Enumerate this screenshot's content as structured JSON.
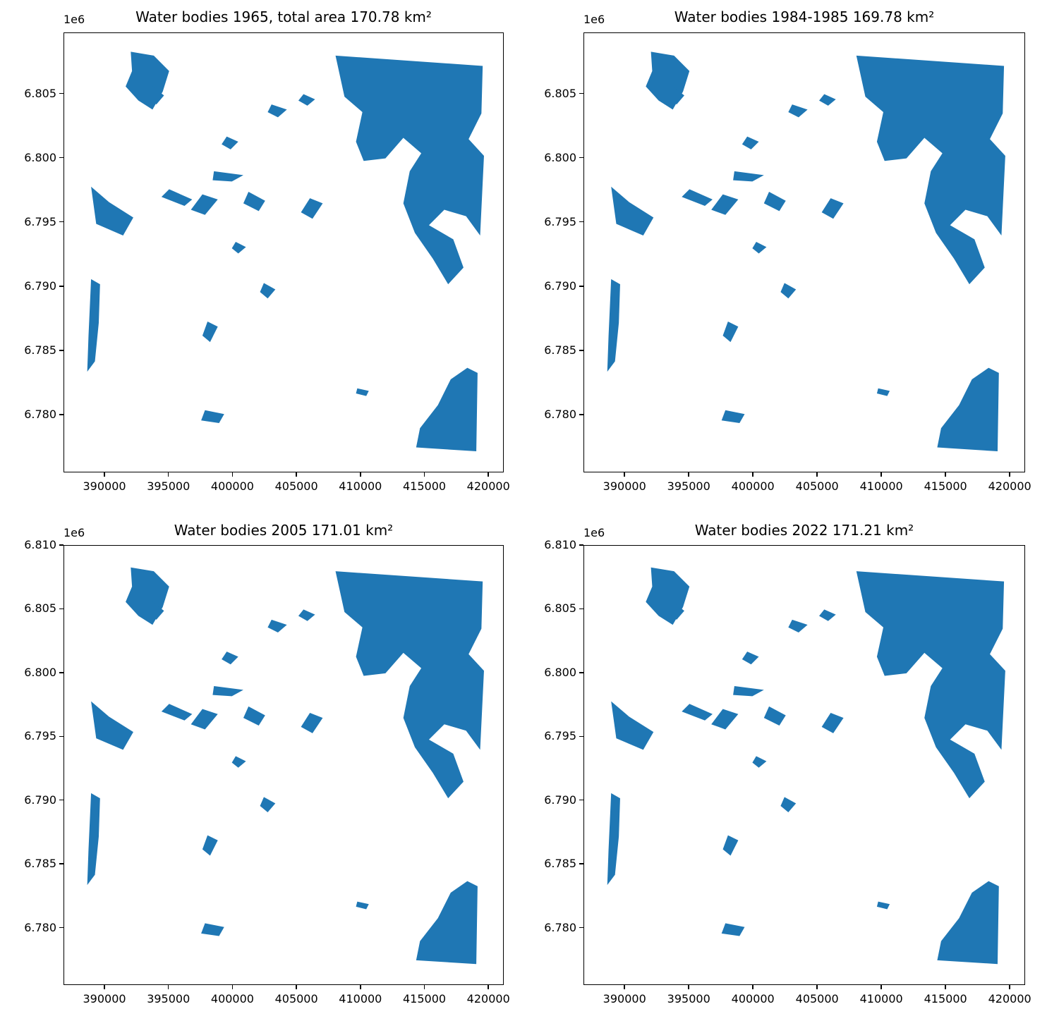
{
  "chart_data": [
    {
      "type": "map",
      "title": "Water bodies 1965, total area 170.78 km²",
      "xlim": [
        386800,
        421200
      ],
      "ylim": [
        6775500,
        6809750
      ],
      "x_ticks": [
        390000,
        395000,
        400000,
        405000,
        410000,
        415000,
        420000
      ],
      "x_tick_labels": [
        "390000",
        "395000",
        "400000",
        "405000",
        "410000",
        "415000",
        "420000"
      ],
      "y_ticks": [
        6780000,
        6785000,
        6790000,
        6795000,
        6800000,
        6805000
      ],
      "y_tick_labels": [
        "6.780",
        "6.785",
        "6.790",
        "6.795",
        "6.800",
        "6.805"
      ],
      "y_offset_label": "1e6",
      "fill_color": "#1f77b4"
    },
    {
      "type": "map",
      "title": "Water bodies 1984-1985 169.78 km²",
      "xlim": [
        386800,
        421200
      ],
      "ylim": [
        6775500,
        6809750
      ],
      "x_ticks": [
        390000,
        395000,
        400000,
        405000,
        410000,
        415000,
        420000
      ],
      "x_tick_labels": [
        "390000",
        "395000",
        "400000",
        "405000",
        "410000",
        "415000",
        "420000"
      ],
      "y_ticks": [
        6780000,
        6785000,
        6790000,
        6795000,
        6800000,
        6805000
      ],
      "y_tick_labels": [
        "6.780",
        "6.785",
        "6.790",
        "6.795",
        "6.800",
        "6.805"
      ],
      "y_offset_label": "1e6",
      "fill_color": "#1f77b4"
    },
    {
      "type": "map",
      "title": "Water bodies 2005 171.01 km²",
      "xlim": [
        386800,
        421200
      ],
      "ylim": [
        6775500,
        6810000
      ],
      "x_ticks": [
        390000,
        395000,
        400000,
        405000,
        410000,
        415000,
        420000
      ],
      "x_tick_labels": [
        "390000",
        "395000",
        "400000",
        "405000",
        "410000",
        "415000",
        "420000"
      ],
      "y_ticks": [
        6780000,
        6785000,
        6790000,
        6795000,
        6800000,
        6805000,
        6810000
      ],
      "y_tick_labels": [
        "6.780",
        "6.785",
        "6.790",
        "6.795",
        "6.800",
        "6.805",
        "6.810"
      ],
      "y_offset_label": "1e6",
      "fill_color": "#1f77b4"
    },
    {
      "type": "map",
      "title": "Water bodies 2022 171.21 km²",
      "xlim": [
        386800,
        421200
      ],
      "ylim": [
        6775500,
        6810000
      ],
      "x_ticks": [
        390000,
        395000,
        400000,
        405000,
        410000,
        415000,
        420000
      ],
      "x_tick_labels": [
        "390000",
        "395000",
        "400000",
        "405000",
        "410000",
        "415000",
        "420000"
      ],
      "y_ticks": [
        6780000,
        6785000,
        6790000,
        6795000,
        6800000,
        6805000,
        6810000
      ],
      "y_tick_labels": [
        "6.780",
        "6.785",
        "6.790",
        "6.795",
        "6.800",
        "6.805",
        "6.810"
      ],
      "y_offset_label": "1e6",
      "fill_color": "#1f77b4"
    }
  ]
}
